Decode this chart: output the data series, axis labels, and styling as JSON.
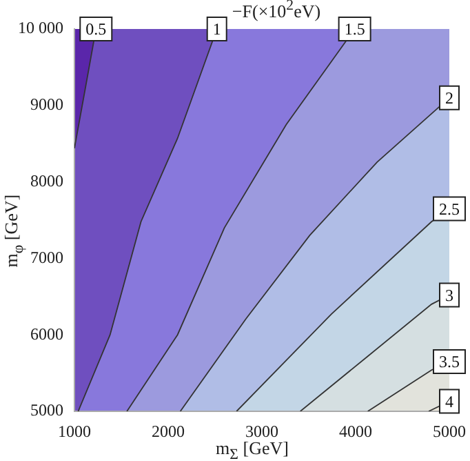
{
  "chart_data": {
    "type": "line",
    "title": "−F(×10$^{2}$eV)",
    "xlabel": "m$_{Σ}$ [GeV]",
    "ylabel": "m$_{φ}$ [GeV]",
    "xlim": [
      1000,
      5000
    ],
    "ylim": [
      5000,
      10000
    ],
    "xticks": [
      1000,
      2000,
      3000,
      4000,
      5000
    ],
    "yticks": [
      5000,
      6000,
      7000,
      8000,
      9000,
      {
        "value": 10000,
        "label": "10 000"
      }
    ],
    "grid": false,
    "legend": false,
    "series": [
      {
        "name": "0.5",
        "color": "#333333",
        "x": [
          1000,
          1120,
          1230
        ],
        "values": [
          8440,
          9250,
          10000
        ]
      },
      {
        "name": "1",
        "color": "#333333",
        "x": [
          1040,
          1380,
          1710,
          2100,
          2520
        ],
        "values": [
          5000,
          6000,
          7480,
          8570,
          10000
        ]
      },
      {
        "name": "1.5",
        "color": "#333333",
        "x": [
          1560,
          2100,
          2600,
          3260,
          3990
        ],
        "values": [
          5000,
          6000,
          7400,
          8750,
          10000
        ]
      },
      {
        "name": "2",
        "color": "#333333",
        "x": [
          2130,
          2830,
          3510,
          4230,
          4900,
          5000
        ],
        "values": [
          5000,
          6210,
          7300,
          8260,
          8990,
          9100
        ]
      },
      {
        "name": "2.5",
        "color": "#333333",
        "x": [
          2730,
          3740,
          4810,
          5000
        ],
        "values": [
          5000,
          6270,
          7480,
          7650
        ]
      },
      {
        "name": "3",
        "color": "#333333",
        "x": [
          3410,
          4130,
          4810,
          5000
        ],
        "values": [
          5000,
          5720,
          6400,
          6520
        ]
      },
      {
        "name": "3.5",
        "color": "#333333",
        "x": [
          4130,
          4810,
          5000
        ],
        "values": [
          5000,
          5540,
          5650
        ]
      },
      {
        "name": "4",
        "color": "#333333",
        "x": [
          4780,
          5000
        ],
        "values": [
          5000,
          5130
        ]
      }
    ]
  }
}
